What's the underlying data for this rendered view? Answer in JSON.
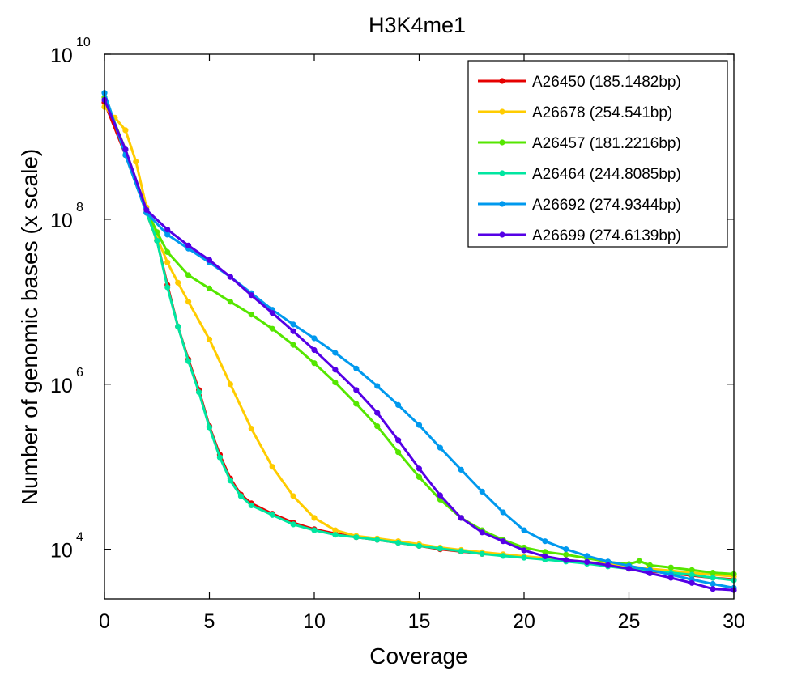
{
  "chart_data": {
    "type": "line",
    "title": "H3K4me1",
    "xlabel": "Coverage",
    "ylabel": "Number of genomic bases (x scale)",
    "x_scale": "linear",
    "y_scale": "log",
    "xlim": [
      0,
      30
    ],
    "ylim": [
      2500,
      10000000000
    ],
    "x_ticks": [
      0,
      5,
      10,
      15,
      20,
      25,
      30
    ],
    "x_tick_labels": [
      "0",
      "5",
      "10",
      "15",
      "20",
      "25",
      "30"
    ],
    "y_ticks": [
      10000,
      1000000,
      100000000,
      10000000000
    ],
    "y_tick_labels": [
      {
        "base": "10",
        "exp": "4"
      },
      {
        "base": "10",
        "exp": "6"
      },
      {
        "base": "10",
        "exp": "8"
      },
      {
        "base": "10",
        "exp": "10"
      }
    ],
    "grid": false,
    "legend_position": "top-right",
    "marker": "dot",
    "series": [
      {
        "name": "A26450 (185.1482bp)",
        "color": "#e60000",
        "x": [
          0,
          1,
          2,
          2.5,
          3,
          3.5,
          4,
          4.5,
          5,
          5.5,
          6,
          6.5,
          7,
          8,
          9,
          10,
          11,
          12,
          13,
          14,
          15,
          16,
          17,
          18,
          19,
          20,
          21,
          22,
          23,
          24,
          25,
          26,
          27,
          28,
          29,
          30
        ],
        "y": [
          2600000000,
          600000000,
          120000000,
          55000000,
          16000000,
          5000000,
          2000000,
          850000,
          310000,
          140000,
          72000,
          46000,
          36000,
          27000,
          21000,
          17500,
          15500,
          14000,
          13000,
          12000,
          11000,
          10000,
          9400,
          8800,
          8400,
          8000,
          7600,
          7200,
          6900,
          6300,
          5800,
          5400,
          5100,
          4800,
          4500,
          4300
        ]
      },
      {
        "name": "A26678 (254.541bp)",
        "color": "#ffcc00",
        "x": [
          0,
          0.5,
          1,
          1.5,
          2,
          2.5,
          3,
          3.5,
          4,
          5,
          6,
          7,
          8,
          9,
          10,
          11,
          12,
          13,
          14,
          15,
          16,
          17,
          18,
          19,
          20,
          21,
          22,
          23,
          24,
          25,
          26,
          27,
          28,
          29,
          30
        ],
        "y": [
          2300000000,
          1700000000,
          1200000000,
          500000000,
          140000000,
          60000000,
          30000000,
          17000000,
          10000000,
          3500000,
          1000000,
          290000,
          100000,
          44000,
          24000,
          17000,
          14500,
          13500,
          12500,
          11500,
          10500,
          9800,
          9200,
          8700,
          8200,
          7800,
          7400,
          7000,
          6600,
          6200,
          5800,
          5500,
          5200,
          4900,
          4700
        ]
      },
      {
        "name": "A26457 (181.2216bp)",
        "color": "#55e600",
        "x": [
          0,
          1,
          2,
          2.5,
          3,
          4,
          5,
          6,
          7,
          8,
          9,
          10,
          11,
          12,
          13,
          14,
          15,
          16,
          17,
          18,
          19,
          20,
          21,
          22,
          23,
          24,
          25,
          25.5,
          26,
          27,
          28,
          29,
          30
        ],
        "y": [
          3000000000,
          700000000,
          130000000,
          70000000,
          40000000,
          21000000,
          14500000,
          10000000,
          7000000,
          4700000,
          3000000,
          1800000,
          1050000,
          580000,
          310000,
          150000,
          75000,
          40000,
          24000,
          17000,
          13000,
          10500,
          9300,
          8600,
          7800,
          7000,
          6600,
          7200,
          6400,
          6000,
          5600,
          5200,
          5000
        ]
      },
      {
        "name": "A26464 (244.8085bp)",
        "color": "#00e6a0",
        "x": [
          0,
          1,
          2,
          2.5,
          3,
          3.5,
          4,
          4.5,
          5,
          5.5,
          6,
          6.5,
          7,
          8,
          9,
          10,
          11,
          12,
          13,
          14,
          15,
          16,
          17,
          18,
          19,
          20,
          21,
          22,
          23,
          24,
          25,
          26,
          27,
          28,
          29,
          30
        ],
        "y": [
          3400000000,
          600000000,
          120000000,
          55000000,
          15000000,
          5000000,
          1900000,
          800000,
          300000,
          130000,
          68000,
          44000,
          34000,
          26000,
          20000,
          17000,
          15000,
          14000,
          13000,
          12000,
          11000,
          10200,
          9500,
          8800,
          8300,
          7900,
          7500,
          7100,
          6700,
          6200,
          5800,
          5500,
          5200,
          4900,
          4500,
          4200
        ]
      },
      {
        "name": "A26692 (274.9344bp)",
        "color": "#0099ee",
        "x": [
          0,
          1,
          2,
          3,
          4,
          5,
          6,
          7,
          8,
          9,
          10,
          11,
          12,
          13,
          14,
          15,
          16,
          17,
          18,
          19,
          20,
          21,
          22,
          23,
          24,
          25,
          26,
          27,
          28,
          29,
          30
        ],
        "y": [
          3400000000,
          600000000,
          120000000,
          65000000,
          44000000,
          30000000,
          20000000,
          12700000,
          8000000,
          5300000,
          3600000,
          2400000,
          1550000,
          950000,
          560000,
          320000,
          170000,
          92000,
          50000,
          28000,
          17000,
          12500,
          10000,
          8300,
          7100,
          6300,
          5600,
          4900,
          4300,
          3800,
          3400
        ]
      },
      {
        "name": "A26699 (274.6139bp)",
        "color": "#5500e6",
        "x": [
          0,
          1,
          2,
          3,
          4,
          5,
          6,
          7,
          8,
          9,
          10,
          11,
          12,
          13,
          14,
          15,
          16,
          17,
          18,
          19,
          20,
          21,
          22,
          23,
          24,
          25,
          26,
          27,
          28,
          29,
          30
        ],
        "y": [
          2800000000,
          700000000,
          130000000,
          75000000,
          48000000,
          32000000,
          20000000,
          12000000,
          7300000,
          4400000,
          2600000,
          1500000,
          850000,
          450000,
          210000,
          95000,
          45000,
          24000,
          16000,
          12500,
          9700,
          8200,
          7400,
          7000,
          6400,
          5800,
          5100,
          4500,
          3900,
          3300,
          3200
        ]
      }
    ]
  }
}
